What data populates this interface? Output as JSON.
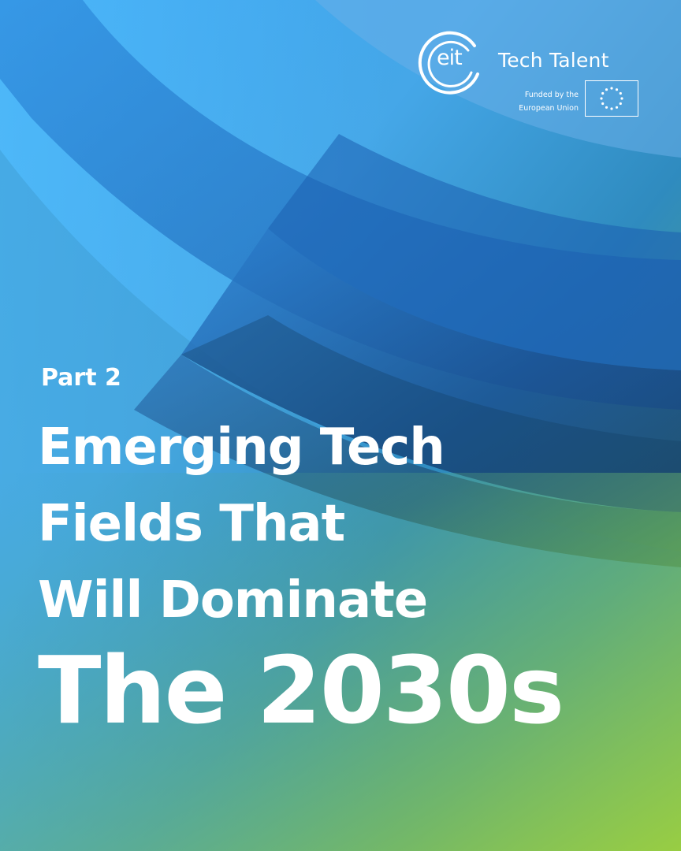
{
  "brand": {
    "logo_text": "eit",
    "product_name": "Tech Talent",
    "funded_by": [
      "Funded by the",
      "European Union"
    ],
    "flag_icon": "eu-flag-icon"
  },
  "cover": {
    "subtitle": "Part 2",
    "title_lines": [
      "Emerging Tech",
      "Fields That",
      "Will Dominate"
    ],
    "title_emphasis": "The 2030s"
  },
  "colors": {
    "gradient_top": "#3f9ff0",
    "gradient_mid": "#2f8fc9",
    "gradient_bottom": "#8cc24a",
    "band_dark": "#13447a",
    "band_green": "#2f6b3f",
    "text": "#ffffff"
  }
}
